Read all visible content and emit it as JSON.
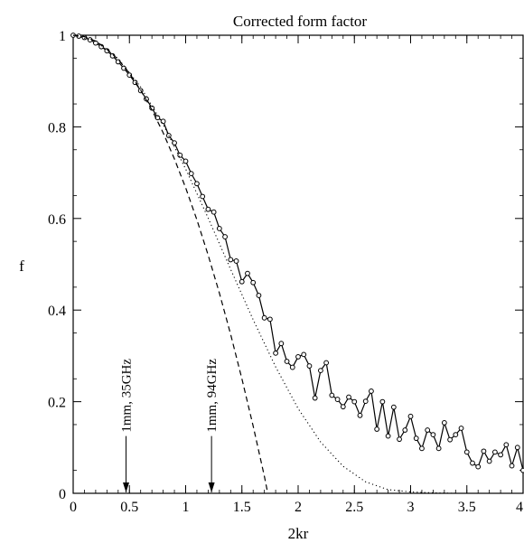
{
  "chart_data": {
    "type": "line",
    "title": "Corrected form factor",
    "xlabel": "2kr",
    "ylabel": "f",
    "xlim": [
      0,
      4
    ],
    "ylim": [
      0,
      1
    ],
    "x_ticks": [
      {
        "value": 0,
        "label": "0"
      },
      {
        "value": 0.5,
        "label": "0.5"
      },
      {
        "value": 1,
        "label": "1"
      },
      {
        "value": 1.5,
        "label": "1.5"
      },
      {
        "value": 2,
        "label": "2"
      },
      {
        "value": 2.5,
        "label": "2.5"
      },
      {
        "value": 3,
        "label": "3"
      },
      {
        "value": 3.5,
        "label": "3.5"
      },
      {
        "value": 4,
        "label": "4"
      }
    ],
    "y_ticks": [
      {
        "value": 0,
        "label": "0"
      },
      {
        "value": 0.2,
        "label": "0.2"
      },
      {
        "value": 0.4,
        "label": "0.4"
      },
      {
        "value": 0.6,
        "label": "0.6"
      },
      {
        "value": 0.8,
        "label": "0.8"
      },
      {
        "value": 1,
        "label": "1"
      }
    ],
    "grid": false,
    "series": [
      {
        "style": "solid-markers",
        "x": [
          0.0,
          0.05,
          0.1,
          0.15,
          0.2,
          0.25,
          0.3,
          0.35,
          0.4,
          0.45,
          0.5,
          0.55,
          0.6,
          0.65,
          0.7,
          0.75,
          0.8,
          0.85,
          0.9,
          0.95,
          1.0,
          1.05,
          1.1,
          1.15,
          1.2,
          1.25,
          1.3,
          1.35,
          1.4,
          1.45,
          1.5,
          1.55,
          1.6,
          1.65,
          1.7,
          1.75,
          1.8,
          1.85,
          1.9,
          1.95,
          2.0,
          2.05,
          2.1,
          2.15,
          2.2,
          2.25,
          2.3,
          2.35,
          2.4,
          2.45,
          2.5,
          2.55,
          2.6,
          2.65,
          2.7,
          2.75,
          2.8,
          2.85,
          2.9,
          2.95,
          3.0,
          3.05,
          3.1,
          3.15,
          3.2,
          3.25,
          3.3,
          3.35,
          3.4,
          3.45,
          3.5,
          3.55,
          3.6,
          3.65,
          3.7,
          3.75,
          3.8,
          3.85,
          3.9,
          3.95,
          4.0
        ],
        "values": [
          1.0,
          0.998,
          0.995,
          0.99,
          0.983,
          0.975,
          0.966,
          0.955,
          0.942,
          0.928,
          0.913,
          0.897,
          0.879,
          0.861,
          0.841,
          0.82,
          0.812,
          0.781,
          0.765,
          0.738,
          0.725,
          0.698,
          0.676,
          0.648,
          0.62,
          0.614,
          0.578,
          0.56,
          0.51,
          0.507,
          0.462,
          0.48,
          0.46,
          0.432,
          0.383,
          0.38,
          0.306,
          0.327,
          0.288,
          0.275,
          0.298,
          0.303,
          0.278,
          0.208,
          0.268,
          0.285,
          0.214,
          0.205,
          0.189,
          0.21,
          0.2,
          0.17,
          0.201,
          0.223,
          0.14,
          0.2,
          0.125,
          0.188,
          0.118,
          0.138,
          0.168,
          0.12,
          0.098,
          0.138,
          0.128,
          0.098,
          0.154,
          0.117,
          0.128,
          0.142,
          0.09,
          0.066,
          0.058,
          0.092,
          0.07,
          0.09,
          0.084,
          0.106,
          0.06,
          0.1,
          0.05
        ]
      },
      {
        "style": "dashed",
        "x": [
          0.0,
          0.1,
          0.2,
          0.3,
          0.4,
          0.5,
          0.6,
          0.7,
          0.8,
          0.9,
          1.0,
          1.1,
          1.2,
          1.3,
          1.4,
          1.5,
          1.6,
          1.65,
          1.7,
          1.73
        ],
        "values": [
          1.0,
          0.997,
          0.987,
          0.97,
          0.947,
          0.917,
          0.88,
          0.837,
          0.787,
          0.73,
          0.667,
          0.597,
          0.52,
          0.437,
          0.347,
          0.25,
          0.147,
          0.092,
          0.037,
          0.0
        ]
      },
      {
        "style": "dotted",
        "x": [
          0.0,
          0.2,
          0.4,
          0.6,
          0.8,
          1.0,
          1.2,
          1.4,
          1.6,
          1.8,
          2.0,
          2.2,
          2.4,
          2.6,
          2.8,
          3.0,
          3.2,
          3.4,
          3.5,
          3.6,
          3.8,
          4.0
        ],
        "values": [
          1.0,
          0.987,
          0.949,
          0.887,
          0.805,
          0.708,
          0.601,
          0.489,
          0.379,
          0.276,
          0.185,
          0.112,
          0.059,
          0.025,
          0.008,
          0.003,
          0.001,
          0.0,
          0.0,
          0.0,
          0.0,
          0.0
        ]
      }
    ],
    "annotations": [
      {
        "text": "1mm, 35GHz",
        "x": 0.47,
        "y_tip": 0.0,
        "y_tail": 0.125
      },
      {
        "text": "1mm, 94GHz",
        "x": 1.23,
        "y_tail": 0.125,
        "y_tip": 0.0
      }
    ]
  }
}
